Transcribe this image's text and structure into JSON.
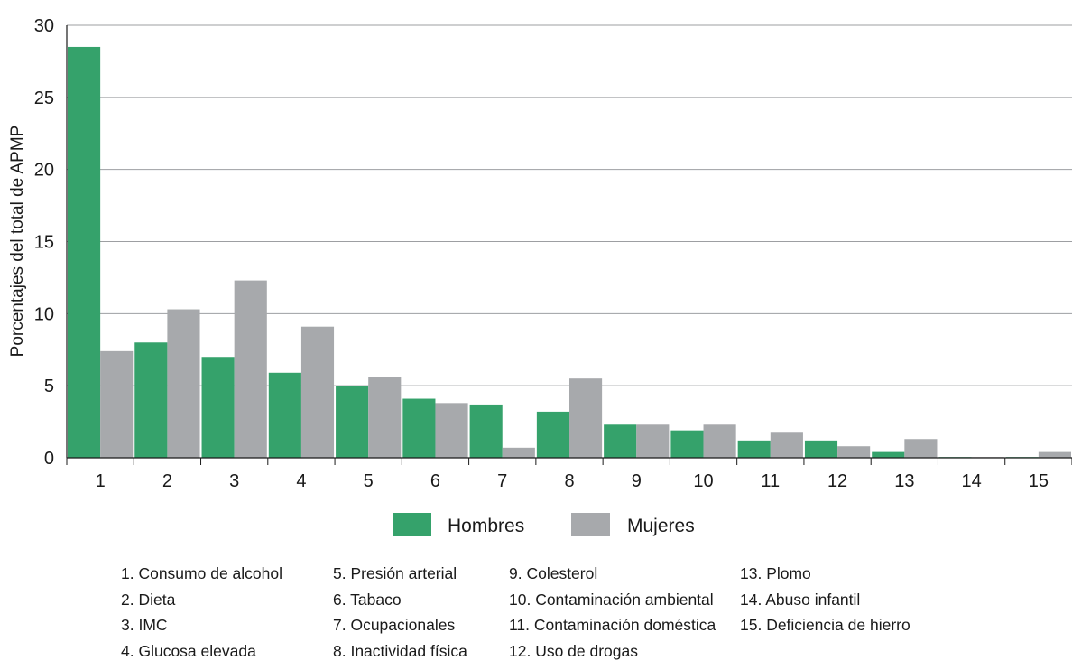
{
  "chart_data": {
    "type": "bar",
    "title": "",
    "xlabel": "",
    "ylabel": "Porcentajes del total de APMP",
    "ylim": [
      0,
      30
    ],
    "yticks": [
      0,
      5,
      10,
      15,
      20,
      25,
      30
    ],
    "grid": true,
    "legend_position": "bottom",
    "categories": [
      "1",
      "2",
      "3",
      "4",
      "5",
      "6",
      "7",
      "8",
      "9",
      "10",
      "11",
      "12",
      "13",
      "14",
      "15"
    ],
    "series": [
      {
        "name": "Hombres",
        "color": "#35a26b",
        "values": [
          28.5,
          8.0,
          7.0,
          5.9,
          5.0,
          4.1,
          3.7,
          3.2,
          2.3,
          1.9,
          1.2,
          1.2,
          0.4,
          0.05,
          0.05
        ]
      },
      {
        "name": "Mujeres",
        "color": "#a7a9ac",
        "values": [
          7.4,
          10.3,
          12.3,
          9.1,
          5.6,
          3.8,
          0.7,
          5.5,
          2.3,
          2.3,
          1.8,
          0.8,
          1.3,
          0.05,
          0.4
        ]
      }
    ]
  },
  "notes": [
    [
      "1. Consumo de alcohol",
      "2. Dieta",
      "3. IMC",
      "4. Glucosa elevada"
    ],
    [
      "5. Presión arterial",
      "6. Tabaco",
      "7. Ocupacionales",
      "8. Inactividad física"
    ],
    [
      "9.   Colesterol",
      "10. Contaminación ambiental",
      "11. Contaminación doméstica",
      "12. Uso de drogas"
    ],
    [
      "13. Plomo",
      "14. Abuso infantil",
      "15. Deficiencia de hierro"
    ]
  ]
}
